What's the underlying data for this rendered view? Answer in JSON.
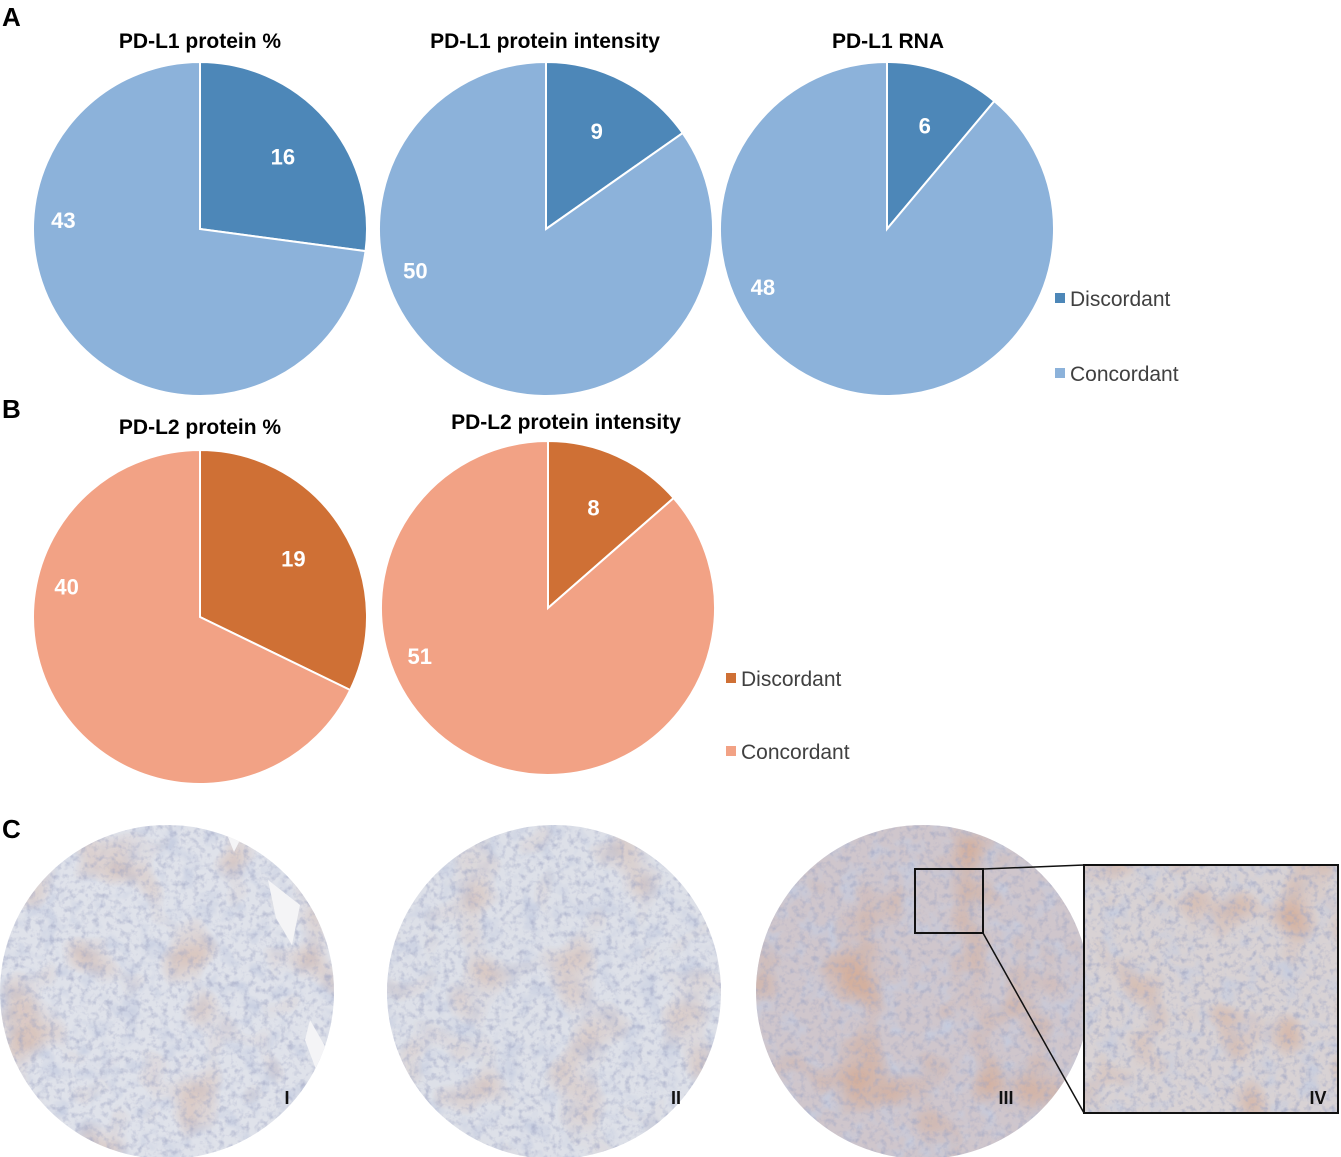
{
  "panel_letters": [
    "A",
    "B",
    "C"
  ],
  "chart_data": [
    {
      "type": "pie",
      "title": "PD-L1 protein %",
      "categories": [
        "Discordant",
        "Concordant"
      ],
      "values": [
        16,
        43
      ],
      "colors": [
        "#4d87b8",
        "#8cb2da"
      ]
    },
    {
      "type": "pie",
      "title": "PD-L1 protein intensity",
      "categories": [
        "Discordant",
        "Concordant"
      ],
      "values": [
        9,
        50
      ],
      "colors": [
        "#4d87b8",
        "#8cb2da"
      ]
    },
    {
      "type": "pie",
      "title": "PD-L1 RNA",
      "categories": [
        "Discordant",
        "Concordant"
      ],
      "values": [
        6,
        48
      ],
      "colors": [
        "#4d87b8",
        "#8cb2da"
      ]
    },
    {
      "type": "pie",
      "title": "PD-L2 protein %",
      "categories": [
        "Discordant",
        "Concordant"
      ],
      "values": [
        19,
        40
      ],
      "colors": [
        "#cf7035",
        "#f2a285"
      ]
    },
    {
      "type": "pie",
      "title": "PD-L2 protein intensity",
      "categories": [
        "Discordant",
        "Concordant"
      ],
      "values": [
        8,
        51
      ],
      "colors": [
        "#cf7035",
        "#f2a285"
      ]
    }
  ],
  "legends": [
    {
      "items": [
        {
          "label": "Discordant",
          "color": "#4d87b8"
        },
        {
          "label": "Concordant",
          "color": "#8cb2da"
        }
      ]
    },
    {
      "items": [
        {
          "label": "Discordant",
          "color": "#cf7035"
        },
        {
          "label": "Concordant",
          "color": "#f2a285"
        }
      ]
    }
  ],
  "micrographs": {
    "labels": [
      "I",
      "II",
      "III",
      "IV"
    ]
  }
}
